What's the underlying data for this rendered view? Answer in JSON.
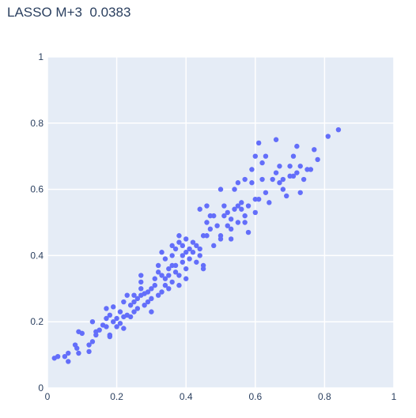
{
  "chart_data": {
    "type": "scatter",
    "title": "LASSO M+3  0.0383",
    "xlabel": "",
    "ylabel": "",
    "xlim": [
      0,
      1
    ],
    "ylim": [
      0,
      1
    ],
    "xticks": [
      "0",
      "0.2",
      "0.4",
      "0.6",
      "0.8",
      "1"
    ],
    "yticks": [
      "0",
      "0.2",
      "0.4",
      "0.6",
      "0.8",
      "1"
    ],
    "grid": true,
    "legend": false,
    "colors": {
      "marker": "#636efa",
      "plot_bg": "#e5ecf6",
      "grid": "#ffffff",
      "text": "#2a3f5f"
    },
    "series": [
      {
        "points": [
          [
            0.02,
            0.09
          ],
          [
            0.03,
            0.095
          ],
          [
            0.05,
            0.095
          ],
          [
            0.06,
            0.08
          ],
          [
            0.06,
            0.105
          ],
          [
            0.08,
            0.13
          ],
          [
            0.085,
            0.12
          ],
          [
            0.09,
            0.17
          ],
          [
            0.09,
            0.105
          ],
          [
            0.1,
            0.165
          ],
          [
            0.12,
            0.11
          ],
          [
            0.12,
            0.13
          ],
          [
            0.13,
            0.14
          ],
          [
            0.13,
            0.2
          ],
          [
            0.14,
            0.17
          ],
          [
            0.14,
            0.16
          ],
          [
            0.15,
            0.175
          ],
          [
            0.16,
            0.19
          ],
          [
            0.17,
            0.185
          ],
          [
            0.17,
            0.21
          ],
          [
            0.17,
            0.24
          ],
          [
            0.18,
            0.155
          ],
          [
            0.18,
            0.16
          ],
          [
            0.18,
            0.22
          ],
          [
            0.19,
            0.245
          ],
          [
            0.19,
            0.2
          ],
          [
            0.2,
            0.185
          ],
          [
            0.2,
            0.21
          ],
          [
            0.21,
            0.23
          ],
          [
            0.21,
            0.195
          ],
          [
            0.22,
            0.18
          ],
          [
            0.22,
            0.26
          ],
          [
            0.22,
            0.215
          ],
          [
            0.23,
            0.28
          ],
          [
            0.23,
            0.22
          ],
          [
            0.24,
            0.25
          ],
          [
            0.24,
            0.215
          ],
          [
            0.25,
            0.23
          ],
          [
            0.25,
            0.26
          ],
          [
            0.25,
            0.28
          ],
          [
            0.26,
            0.27
          ],
          [
            0.26,
            0.24
          ],
          [
            0.27,
            0.3
          ],
          [
            0.27,
            0.28
          ],
          [
            0.27,
            0.32
          ],
          [
            0.27,
            0.34
          ],
          [
            0.28,
            0.285
          ],
          [
            0.28,
            0.25
          ],
          [
            0.29,
            0.29
          ],
          [
            0.29,
            0.26
          ],
          [
            0.3,
            0.3
          ],
          [
            0.3,
            0.23
          ],
          [
            0.3,
            0.27
          ],
          [
            0.31,
            0.33
          ],
          [
            0.31,
            0.31
          ],
          [
            0.32,
            0.28
          ],
          [
            0.32,
            0.35
          ],
          [
            0.32,
            0.37
          ],
          [
            0.33,
            0.29
          ],
          [
            0.33,
            0.34
          ],
          [
            0.33,
            0.41
          ],
          [
            0.34,
            0.31
          ],
          [
            0.34,
            0.33
          ],
          [
            0.34,
            0.39
          ],
          [
            0.35,
            0.3
          ],
          [
            0.35,
            0.34
          ],
          [
            0.35,
            0.36
          ],
          [
            0.36,
            0.43
          ],
          [
            0.36,
            0.4
          ],
          [
            0.36,
            0.37
          ],
          [
            0.36,
            0.32
          ],
          [
            0.37,
            0.37
          ],
          [
            0.37,
            0.35
          ],
          [
            0.37,
            0.42
          ],
          [
            0.38,
            0.44
          ],
          [
            0.38,
            0.46
          ],
          [
            0.38,
            0.34
          ],
          [
            0.38,
            0.31
          ],
          [
            0.39,
            0.4
          ],
          [
            0.39,
            0.43
          ],
          [
            0.39,
            0.38
          ],
          [
            0.4,
            0.41
          ],
          [
            0.4,
            0.45
          ],
          [
            0.4,
            0.36
          ],
          [
            0.4,
            0.33
          ],
          [
            0.41,
            0.42
          ],
          [
            0.41,
            0.39
          ],
          [
            0.42,
            0.44
          ],
          [
            0.42,
            0.41
          ],
          [
            0.43,
            0.43
          ],
          [
            0.43,
            0.38
          ],
          [
            0.44,
            0.54
          ],
          [
            0.44,
            0.4
          ],
          [
            0.44,
            0.42
          ],
          [
            0.45,
            0.46
          ],
          [
            0.45,
            0.37
          ],
          [
            0.45,
            0.36
          ],
          [
            0.46,
            0.5
          ],
          [
            0.46,
            0.46
          ],
          [
            0.46,
            0.55
          ],
          [
            0.47,
            0.52
          ],
          [
            0.47,
            0.48
          ],
          [
            0.48,
            0.52
          ],
          [
            0.48,
            0.43
          ],
          [
            0.49,
            0.49
          ],
          [
            0.5,
            0.46
          ],
          [
            0.5,
            0.45
          ],
          [
            0.5,
            0.6
          ],
          [
            0.51,
            0.55
          ],
          [
            0.51,
            0.52
          ],
          [
            0.52,
            0.49
          ],
          [
            0.52,
            0.53
          ],
          [
            0.53,
            0.48
          ],
          [
            0.53,
            0.51
          ],
          [
            0.53,
            0.45
          ],
          [
            0.54,
            0.54
          ],
          [
            0.54,
            0.6
          ],
          [
            0.55,
            0.5
          ],
          [
            0.55,
            0.55
          ],
          [
            0.55,
            0.62
          ],
          [
            0.56,
            0.54
          ],
          [
            0.56,
            0.56
          ],
          [
            0.57,
            0.63
          ],
          [
            0.57,
            0.5
          ],
          [
            0.57,
            0.52
          ],
          [
            0.58,
            0.55
          ],
          [
            0.58,
            0.47
          ],
          [
            0.59,
            0.62
          ],
          [
            0.59,
            0.66
          ],
          [
            0.6,
            0.53
          ],
          [
            0.6,
            0.57
          ],
          [
            0.6,
            0.7
          ],
          [
            0.61,
            0.74
          ],
          [
            0.61,
            0.57
          ],
          [
            0.62,
            0.63
          ],
          [
            0.62,
            0.68
          ],
          [
            0.63,
            0.59
          ],
          [
            0.63,
            0.7
          ],
          [
            0.64,
            0.56
          ],
          [
            0.65,
            0.63
          ],
          [
            0.66,
            0.65
          ],
          [
            0.66,
            0.75
          ],
          [
            0.67,
            0.62
          ],
          [
            0.67,
            0.67
          ],
          [
            0.68,
            0.6
          ],
          [
            0.68,
            0.63
          ],
          [
            0.69,
            0.58
          ],
          [
            0.7,
            0.64
          ],
          [
            0.7,
            0.67
          ],
          [
            0.71,
            0.7
          ],
          [
            0.71,
            0.64
          ],
          [
            0.72,
            0.73
          ],
          [
            0.72,
            0.65
          ],
          [
            0.73,
            0.59
          ],
          [
            0.73,
            0.67
          ],
          [
            0.74,
            0.63
          ],
          [
            0.75,
            0.66
          ],
          [
            0.76,
            0.66
          ],
          [
            0.77,
            0.72
          ],
          [
            0.78,
            0.69
          ],
          [
            0.81,
            0.76
          ],
          [
            0.84,
            0.78
          ]
        ]
      }
    ]
  }
}
